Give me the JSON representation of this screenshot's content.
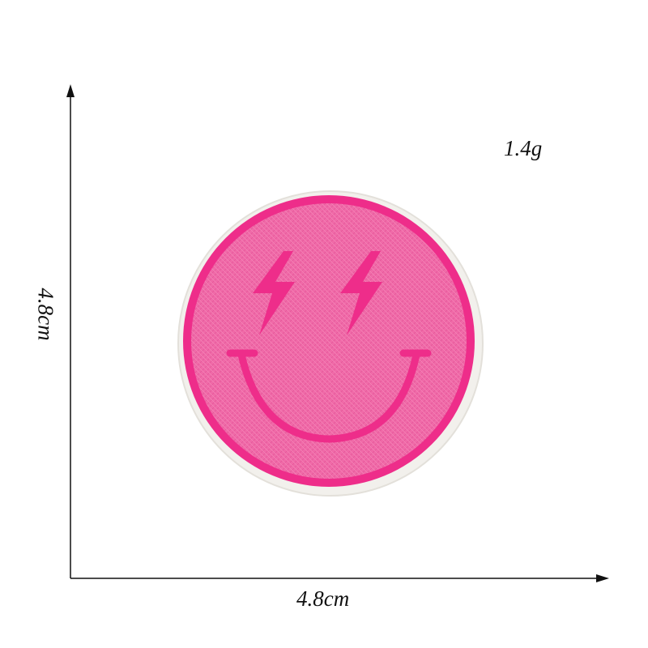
{
  "product": {
    "weight": "1.4g",
    "width": "4.8cm",
    "height": "4.8cm"
  },
  "colors": {
    "patch_fill": "#f06aa8",
    "patch_border": "#ee2d8a",
    "patch_backing": "#f4f2ee",
    "axis": "#111111"
  },
  "icons": {
    "patch": "pink-smiley-lightning-eyes-patch"
  }
}
